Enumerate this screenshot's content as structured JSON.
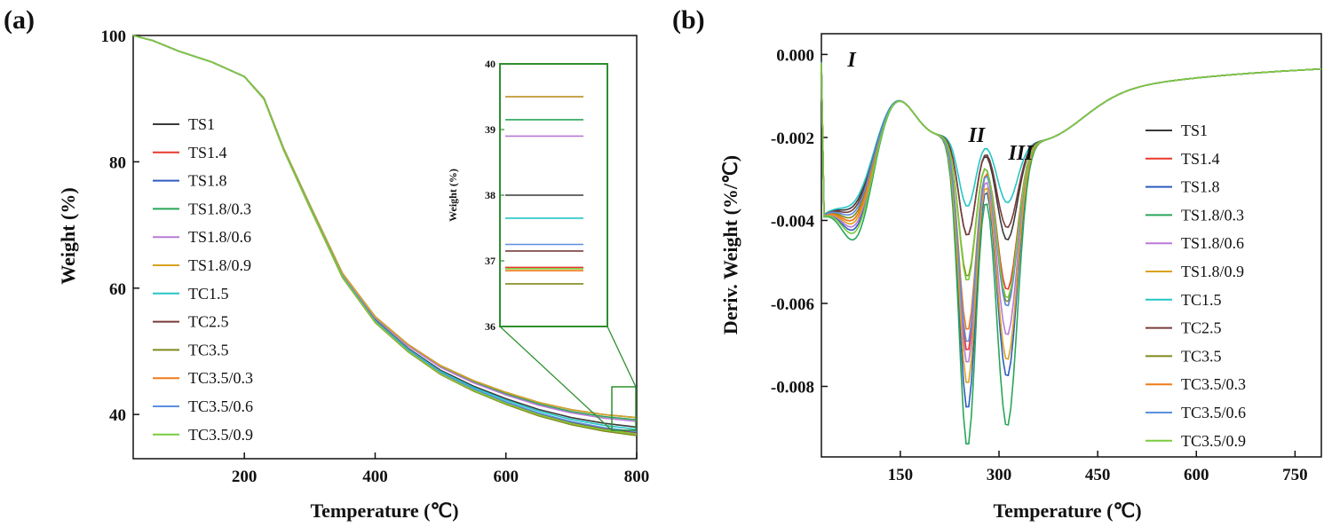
{
  "colors": {
    "TS1": "#3a3a3a",
    "TS1.4": "#e8392c",
    "TS1.8": "#2f5cc0",
    "TS1.8/0.3": "#2aa55a",
    "TS1.8/0.6": "#b97ad6",
    "TS1.8/0.9": "#d9a21e",
    "TC1.5": "#25c6c6",
    "TC2.5": "#7a3b3b",
    "TC3.5": "#7f8a1e",
    "TC3.5/0.3": "#f07a1a",
    "TC3.5/0.6": "#5b8fe0",
    "TC3.5/0.9": "#7acb3c",
    "inset_frame": "#2f8f2f"
  },
  "chart_data": [
    {
      "panel": "(a)",
      "type": "line",
      "xlabel": "Temperature (℃)",
      "ylabel": "Weight (%)",
      "xlim": [
        30,
        800
      ],
      "ylim": [
        33,
        100
      ],
      "xticks": [
        "200",
        "400",
        "600",
        "800"
      ],
      "yticks": [
        "40",
        "60",
        "80",
        "100"
      ],
      "legend_position": "left",
      "x": [
        30,
        60,
        100,
        150,
        200,
        230,
        260,
        300,
        350,
        400,
        450,
        500,
        550,
        600,
        650,
        700,
        750,
        800
      ],
      "series": [
        {
          "name": "TS1",
          "final": 38.0
        },
        {
          "name": "TS1.4",
          "final": 36.9
        },
        {
          "name": "TS1.8",
          "final": 39.5
        },
        {
          "name": "TS1.8/0.3",
          "final": 39.15
        },
        {
          "name": "TS1.8/0.6",
          "final": 38.9
        },
        {
          "name": "TS1.8/0.9",
          "final": 39.5
        },
        {
          "name": "TC1.5",
          "final": 37.65
        },
        {
          "name": "TC2.5",
          "final": 37.15
        },
        {
          "name": "TC3.5",
          "final": 36.65
        },
        {
          "name": "TC3.5/0.3",
          "final": 36.85
        },
        {
          "name": "TC3.5/0.6",
          "final": 37.25
        },
        {
          "name": "TC3.5/0.9",
          "final": 36.88
        }
      ],
      "base_curve": [
        100,
        99.2,
        97.5,
        95.8,
        93.5,
        90,
        82,
        73,
        62,
        55,
        50.5,
        47,
        44.5,
        42.5,
        40.8,
        39.5,
        38.6,
        38.0
      ],
      "inset": {
        "ylabel": "Weight (%)",
        "ylim": [
          36,
          40
        ],
        "yticks": [
          "36",
          "37",
          "38",
          "39",
          "40"
        ]
      }
    },
    {
      "panel": "(b)",
      "type": "line",
      "xlabel": "Temperature (℃)",
      "ylabel": "Deriv. Weight (%/℃)",
      "xlim": [
        30,
        790
      ],
      "ylim": [
        -0.0097,
        0.0005
      ],
      "xticks": [
        "150",
        "300",
        "450",
        "600",
        "750"
      ],
      "yticks": [
        "0.000",
        "-0.002",
        "-0.004",
        "-0.006",
        "-0.008"
      ],
      "legend_position": "right",
      "region_labels": [
        "I",
        "II",
        "III"
      ],
      "series": [
        {
          "name": "TS1",
          "p1": -0.0007,
          "p2": -0.004,
          "p3": -0.004
        },
        {
          "name": "TS1.4",
          "p1": -0.0011,
          "p2": -0.0068,
          "p3": -0.0052
        },
        {
          "name": "TS1.8",
          "p1": -0.0014,
          "p2": -0.0082,
          "p3": -0.0073
        },
        {
          "name": "TS1.8/0.3",
          "p1": -0.0017,
          "p2": -0.0091,
          "p3": -0.0085
        },
        {
          "name": "TS1.8/0.6",
          "p1": -0.0013,
          "p2": -0.0071,
          "p3": -0.0063
        },
        {
          "name": "TS1.8/0.9",
          "p1": -0.0012,
          "p2": -0.0076,
          "p3": -0.0069
        },
        {
          "name": "TC1.5",
          "p1": -0.0006,
          "p2": -0.0033,
          "p3": -0.0031
        },
        {
          "name": "TC2.5",
          "p1": -0.0008,
          "p2": -0.004,
          "p3": -0.0037
        },
        {
          "name": "TC3.5",
          "p1": -0.001,
          "p2": -0.005,
          "p3": -0.0055
        },
        {
          "name": "TC3.5/0.3",
          "p1": -0.0011,
          "p2": -0.0063,
          "p3": -0.0056
        },
        {
          "name": "TC3.5/0.6",
          "p1": -0.0009,
          "p2": -0.0066,
          "p3": -0.0056
        },
        {
          "name": "TC3.5/0.9",
          "p1": -0.0015,
          "p2": -0.0051,
          "p3": -0.0054
        }
      ]
    }
  ]
}
